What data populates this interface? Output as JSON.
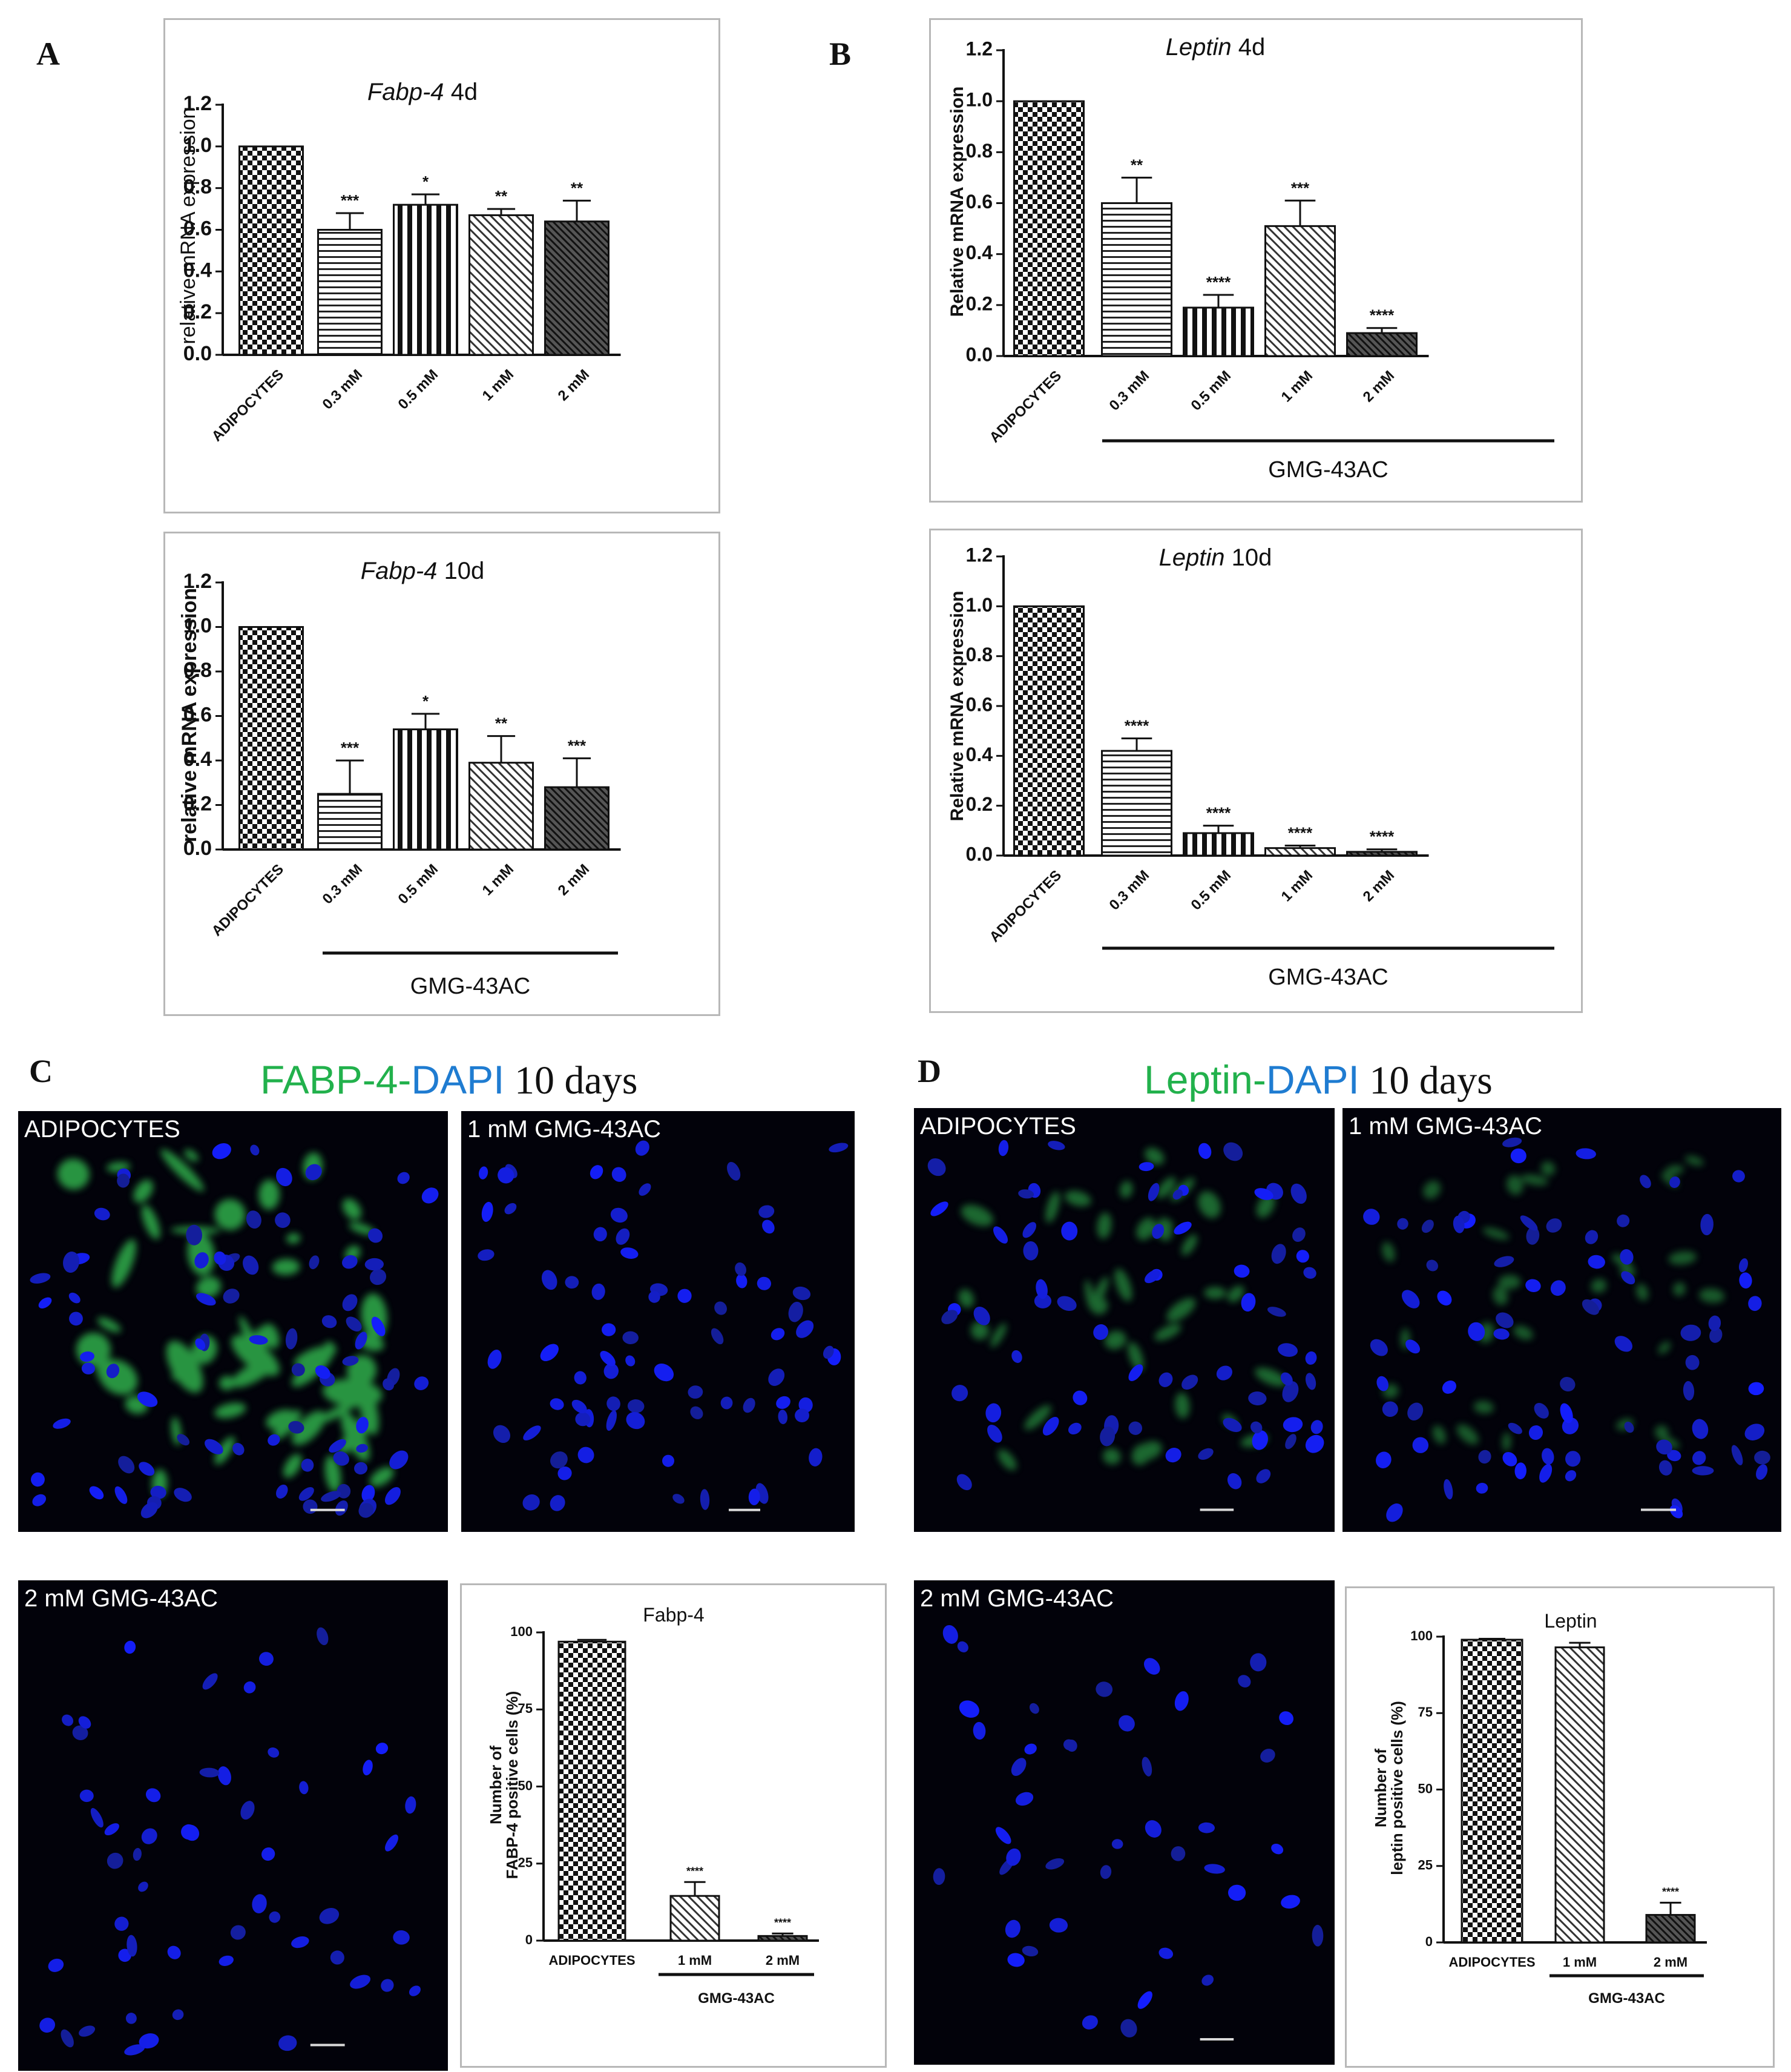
{
  "panel_letters": {
    "a": "A",
    "b": "B",
    "c": "C",
    "d": "D"
  },
  "colors": {
    "green": "#22b14c",
    "blue": "#1f7cd1"
  },
  "icons": {
    "pattern_checker": "checkerboard-fill",
    "pattern_hlines": "horizontal-line-fill",
    "pattern_vlines": "vertical-line-fill",
    "pattern_diag": "diagonal-line-fill"
  },
  "panel_c": {
    "title_green": "FABP-4-",
    "title_blue": "DAPI",
    "title_black": " 10 days"
  },
  "panel_d": {
    "title_green": "Leptin-",
    "title_blue": "DAPI",
    "title_black": " 10 days"
  },
  "micrographs": {
    "c1": {
      "label": "ADIPOCYTES",
      "green_level": 0.9,
      "density": 0.7
    },
    "c2": {
      "label": "1 mM GMG-43AC",
      "green_level": 0.0,
      "density": 0.6
    },
    "c3": {
      "label": "2 mM GMG-43AC",
      "green_level": 0.0,
      "density": 0.35
    },
    "d1": {
      "label": "ADIPOCYTES",
      "green_level": 0.45,
      "density": 0.55
    },
    "d2": {
      "label": "1 mM GMG-43AC",
      "green_level": 0.3,
      "density": 0.65
    },
    "d3": {
      "label": "2 mM GMG-43AC",
      "green_level": 0.0,
      "density": 0.25
    }
  },
  "chart_data": [
    {
      "id": "A-4d",
      "type": "bar",
      "title_italic": "Fabp-4",
      "title_rest": "4d",
      "ylabel": "relative mRNA expression",
      "ylabel_bold": false,
      "ylim": [
        0,
        1.2
      ],
      "yticks": [
        "0.0",
        "0.2",
        "0.4",
        "0.6",
        "0.8",
        "1.0",
        "1.2"
      ],
      "categories": [
        "ADIPOCYTES",
        "0.3 mM",
        "0.5 mM",
        "1 mM",
        "2 mM"
      ],
      "values": [
        1.0,
        0.6,
        0.72,
        0.67,
        0.64
      ],
      "errors": [
        0,
        0.08,
        0.05,
        0.03,
        0.1
      ],
      "sig": [
        "",
        "***",
        "*",
        "**",
        "**"
      ],
      "patterns": [
        "checker",
        "hlines",
        "vlines",
        "diag",
        "diagdark"
      ],
      "group_label": ""
    },
    {
      "id": "A-10d",
      "type": "bar",
      "title_italic": "Fabp-4",
      "title_rest": "10d",
      "ylabel": "relative mRNA expression",
      "ylabel_bold": true,
      "ylim": [
        0,
        1.2
      ],
      "yticks": [
        "0.0",
        "0.2",
        "0.4",
        "0.6",
        "0.8",
        "1.0",
        "1.2"
      ],
      "categories": [
        "ADIPOCYTES",
        "0.3 mM",
        "0.5 mM",
        "1 mM",
        "2 mM"
      ],
      "values": [
        1.0,
        0.25,
        0.54,
        0.39,
        0.28
      ],
      "errors": [
        0,
        0.15,
        0.07,
        0.12,
        0.13
      ],
      "sig": [
        "",
        "***",
        "*",
        "**",
        "***"
      ],
      "patterns": [
        "checker",
        "hlines",
        "vlines",
        "diag",
        "diagdark"
      ],
      "group_label": "GMG-43AC"
    },
    {
      "id": "B-4d",
      "type": "bar",
      "title_italic": "Leptin",
      "title_rest": "4d",
      "ylabel": "Relative mRNA expression",
      "ylabel_bold": true,
      "ylim": [
        0,
        1.2
      ],
      "yticks": [
        "0.0",
        "0.2",
        "0.4",
        "0.6",
        "0.8",
        "1.0",
        "1.2"
      ],
      "categories": [
        "ADIPOCYTES",
        "0.3 mM",
        "0.5 mM",
        "1 mM",
        "2 mM"
      ],
      "values": [
        1.0,
        0.6,
        0.19,
        0.51,
        0.09
      ],
      "errors": [
        0,
        0.1,
        0.05,
        0.1,
        0.02
      ],
      "sig": [
        "",
        "**",
        "****",
        "***",
        "****"
      ],
      "patterns": [
        "checker",
        "hlines",
        "vlines",
        "diag",
        "diagdark"
      ],
      "group_label": "GMG-43AC"
    },
    {
      "id": "B-10d",
      "type": "bar",
      "title_italic": "Leptin",
      "title_rest": "10d",
      "ylabel": "Relative mRNA expression",
      "ylabel_bold": true,
      "ylim": [
        0,
        1.2
      ],
      "yticks": [
        "0.0",
        "0.2",
        "0.4",
        "0.6",
        "0.8",
        "1.0",
        "1.2"
      ],
      "categories": [
        "ADIPOCYTES",
        "0.3 mM",
        "0.5 mM",
        "1 mM",
        "2 mM"
      ],
      "values": [
        1.0,
        0.42,
        0.09,
        0.03,
        0.015
      ],
      "errors": [
        0,
        0.05,
        0.03,
        0.01,
        0.01
      ],
      "sig": [
        "",
        "****",
        "****",
        "****",
        "****"
      ],
      "patterns": [
        "checker",
        "hlines",
        "vlines",
        "diag",
        "diagdark"
      ],
      "group_label": "GMG-43AC"
    },
    {
      "id": "C-count",
      "type": "bar",
      "title_plain": "Fabp-4",
      "ylabel_lines": [
        "Number of",
        "FABP-4 positive cells (%)"
      ],
      "ylim": [
        0,
        100
      ],
      "yticks": [
        "0",
        "25",
        "50",
        "75",
        "100"
      ],
      "categories": [
        "ADIPOCYTES",
        "1 mM",
        "2 mM"
      ],
      "values": [
        97,
        14.5,
        1.5
      ],
      "errors": [
        0.6,
        4.5,
        0.8
      ],
      "sig": [
        "",
        "****",
        "****"
      ],
      "patterns": [
        "checker",
        "diag",
        "diagdark"
      ],
      "group_label": "GMG-43AC"
    },
    {
      "id": "D-count",
      "type": "bar",
      "title_plain": "Leptin",
      "ylabel_lines": [
        "Number of",
        "leptin positive cells (%)"
      ],
      "ylim": [
        0,
        100
      ],
      "yticks": [
        "0",
        "25",
        "50",
        "75",
        "100"
      ],
      "categories": [
        "ADIPOCYTES",
        "1 mM",
        "2 mM"
      ],
      "values": [
        99,
        96.5,
        9
      ],
      "errors": [
        0.3,
        1.5,
        4
      ],
      "sig": [
        "",
        "",
        "****"
      ],
      "patterns": [
        "checker",
        "diag",
        "diagdark"
      ],
      "group_label": "GMG-43AC"
    }
  ]
}
